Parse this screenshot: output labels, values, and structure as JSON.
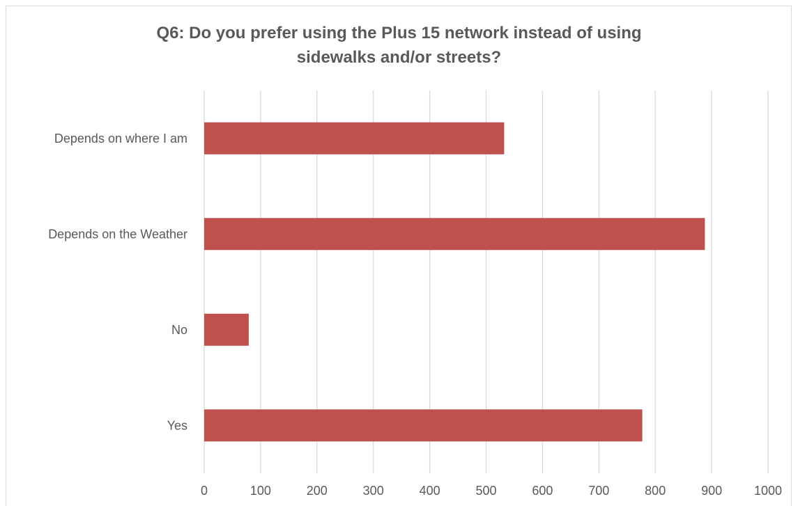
{
  "chart_data": {
    "type": "bar",
    "orientation": "horizontal",
    "title": "Q6: Do you prefer using the Plus 15 network instead of using sidewalks and/or streets?",
    "categories": [
      "Depends on where I am",
      "Depends on the Weather",
      "No",
      "Yes"
    ],
    "values": [
      532,
      888,
      79,
      777
    ],
    "xlim": [
      0,
      1000
    ],
    "xticks": [
      0,
      100,
      200,
      300,
      400,
      500,
      600,
      700,
      800,
      900,
      1000
    ],
    "grid": "vertical",
    "legend": "none",
    "bar_color": "#c0504d"
  }
}
